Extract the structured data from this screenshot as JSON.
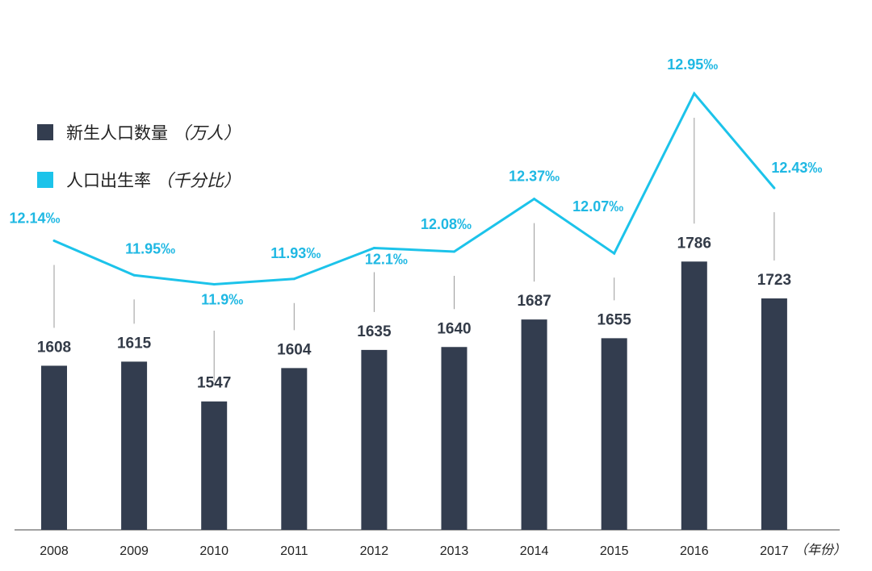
{
  "colors": {
    "bar": "#333d4f",
    "line": "#1cc3ea",
    "rate_text": "#1fb8e3",
    "leader": "#999999",
    "axis": "#444444"
  },
  "legend": {
    "births_label": "新生人口数量",
    "births_unit": "（万人）",
    "rate_label": "人口出生率",
    "rate_unit": "（千分比）"
  },
  "x_unit": "（年份）",
  "chart_data": {
    "type": "bar",
    "categories": [
      "2008",
      "2009",
      "2010",
      "2011",
      "2012",
      "2013",
      "2014",
      "2015",
      "2016",
      "2017"
    ],
    "series": [
      {
        "name": "新生人口数量",
        "unit": "万人",
        "type": "bar",
        "values": [
          1608,
          1615,
          1547,
          1604,
          1635,
          1640,
          1687,
          1655,
          1786,
          1723
        ]
      },
      {
        "name": "人口出生率",
        "unit": "‰",
        "type": "line",
        "values": [
          12.14,
          11.95,
          11.9,
          11.93,
          12.1,
          12.08,
          12.37,
          12.07,
          12.95,
          12.43
        ],
        "labels": [
          "12.14‰",
          "11.95‰",
          "11.9‰",
          "11.93‰",
          "12.1‰",
          "12.08‰",
          "12.37‰",
          "12.07‰",
          "12.95‰",
          "12.43‰"
        ]
      }
    ],
    "legend_position": "top-left",
    "grid": false
  }
}
